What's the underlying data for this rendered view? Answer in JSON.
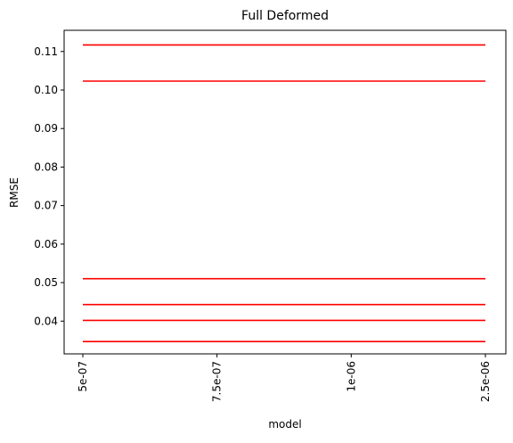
{
  "chart_data": {
    "type": "line",
    "title": "Full Deformed",
    "xlabel": "model",
    "ylabel": "RMSE",
    "categories": [
      "5e-07",
      "7.5e-07",
      "1e-06",
      "2.5e-06"
    ],
    "ylim": [
      0.0315,
      0.1155
    ],
    "yticks": [
      0.04,
      0.05,
      0.06,
      0.07,
      0.08,
      0.09,
      0.1,
      0.11
    ],
    "ytick_labels": [
      "0.04",
      "0.05",
      "0.06",
      "0.07",
      "0.08",
      "0.09",
      "0.10",
      "0.11"
    ],
    "grid": false,
    "legend": "none",
    "series": [
      {
        "values": [
          0.1117,
          0.1117,
          0.1117,
          0.1117
        ]
      },
      {
        "values": [
          0.1023,
          0.1023,
          0.1023,
          0.1023
        ]
      },
      {
        "values": [
          0.051,
          0.051,
          0.051,
          0.051
        ]
      },
      {
        "values": [
          0.0443,
          0.0443,
          0.0443,
          0.0443
        ]
      },
      {
        "values": [
          0.0402,
          0.0402,
          0.0402,
          0.0402
        ]
      },
      {
        "values": [
          0.0347,
          0.0347,
          0.0347,
          0.0347
        ]
      }
    ],
    "line_color": "#ff0000"
  }
}
